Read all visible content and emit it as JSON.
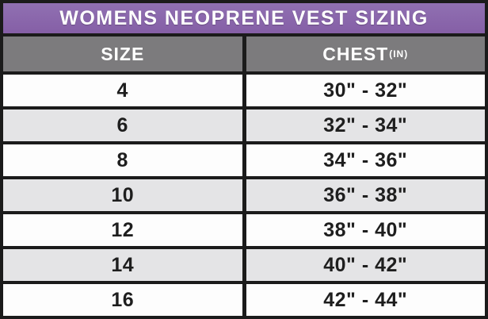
{
  "title": "WOMENS NEOPRENE VEST SIZING",
  "columns": {
    "size_label": "SIZE",
    "chest_label": "CHEST",
    "chest_unit_superscript": "(IN)"
  },
  "rows": [
    {
      "size": "4",
      "chest": "30\" - 32\""
    },
    {
      "size": "6",
      "chest": "32\" - 34\""
    },
    {
      "size": "8",
      "chest": "34\" - 36\""
    },
    {
      "size": "10",
      "chest": "36\" - 38\""
    },
    {
      "size": "12",
      "chest": "38\" - 40\""
    },
    {
      "size": "14",
      "chest": "40\" - 42\""
    },
    {
      "size": "16",
      "chest": "42\" - 44\""
    }
  ],
  "colors": {
    "title_band_purple": "#8a68ac",
    "header_gray": "#7c7b7d",
    "row_alt_gray": "#e4e4e6",
    "row_white": "#fdfdfd",
    "border_black": "#1b1b1b",
    "text_white": "#ffffff",
    "text_black": "#1e1e1e"
  }
}
